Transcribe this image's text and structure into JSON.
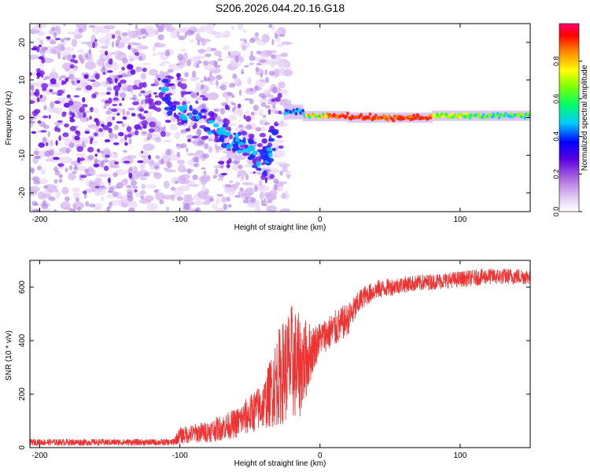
{
  "figure_title": "S206.2026.044.20.16.G18",
  "chart_data": [
    {
      "type": "heatmap",
      "xlabel": "Height of straight line (km)",
      "ylabel": "Frequency (Hz)",
      "xlim": [
        -207,
        150
      ],
      "ylim": [
        -25,
        25
      ],
      "x_ticks": [
        -200,
        -100,
        0,
        100
      ],
      "x_tick_labels": [
        "-200",
        "-100",
        "0",
        "100"
      ],
      "y_ticks": [
        -20,
        -10,
        0,
        10,
        20
      ],
      "y_tick_labels": [
        "-20",
        "-10",
        "0",
        "10",
        "20"
      ],
      "colorbar": {
        "label": "Normalized spectral amplitude",
        "range": [
          0.0,
          1.0
        ],
        "ticks": [
          0.0,
          0.2,
          0.4,
          0.6,
          0.8
        ],
        "tick_labels": [
          "0.0",
          "0.2",
          "0.4",
          "0.6",
          "0.8"
        ],
        "colors": [
          "#ffffff",
          "#e6d0f5",
          "#c08ce8",
          "#8a2be2",
          "#0000ff",
          "#00ffff",
          "#00ff00",
          "#ffff00",
          "#ff8000",
          "#ff0000",
          "#ff0066"
        ]
      },
      "ridge": {
        "noise_region_x": [
          -207,
          -25
        ],
        "tone_x": [
          [
            -25,
            -12,
            1.5
          ],
          [
            -12,
            20,
            0.4
          ],
          [
            20,
            80,
            0.0
          ],
          [
            80,
            150,
            0.5
          ]
        ],
        "descending_trend": [
          [
            -110,
            5
          ],
          [
            -90,
            0
          ],
          [
            -70,
            -4
          ],
          [
            -50,
            -8
          ],
          [
            -40,
            -12
          ],
          [
            -30,
            -3
          ]
        ],
        "peak_amplitude_x": [
          -5,
          80
        ]
      },
      "grid": false
    },
    {
      "type": "line",
      "xlabel": "Height of straight line (km)",
      "ylabel": "SNR (10 * v/v)",
      "xlim": [
        -207,
        150
      ],
      "ylim": [
        0,
        700
      ],
      "x_ticks": [
        -200,
        -100,
        0,
        100
      ],
      "x_tick_labels": [
        "-200",
        "-100",
        "0",
        "100"
      ],
      "y_ticks": [
        0,
        200,
        400,
        600
      ],
      "y_tick_labels": [
        "0",
        "200",
        "400",
        "600"
      ],
      "color": "#ee3333",
      "series_profile": {
        "x": [
          -207,
          -150,
          -105,
          -100,
          -80,
          -60,
          -40,
          -30,
          -20,
          -15,
          -10,
          -5,
          0,
          10,
          20,
          30,
          40,
          60,
          80,
          100,
          120,
          150
        ],
        "y_mean": [
          20,
          20,
          20,
          45,
          60,
          90,
          160,
          260,
          320,
          300,
          330,
          370,
          410,
          440,
          480,
          560,
          590,
          610,
          620,
          630,
          640,
          640
        ],
        "y_spread": [
          12,
          12,
          12,
          30,
          40,
          55,
          90,
          180,
          220,
          200,
          150,
          90,
          60,
          70,
          60,
          40,
          35,
          30,
          30,
          30,
          30,
          30
        ]
      },
      "grid": false
    }
  ]
}
